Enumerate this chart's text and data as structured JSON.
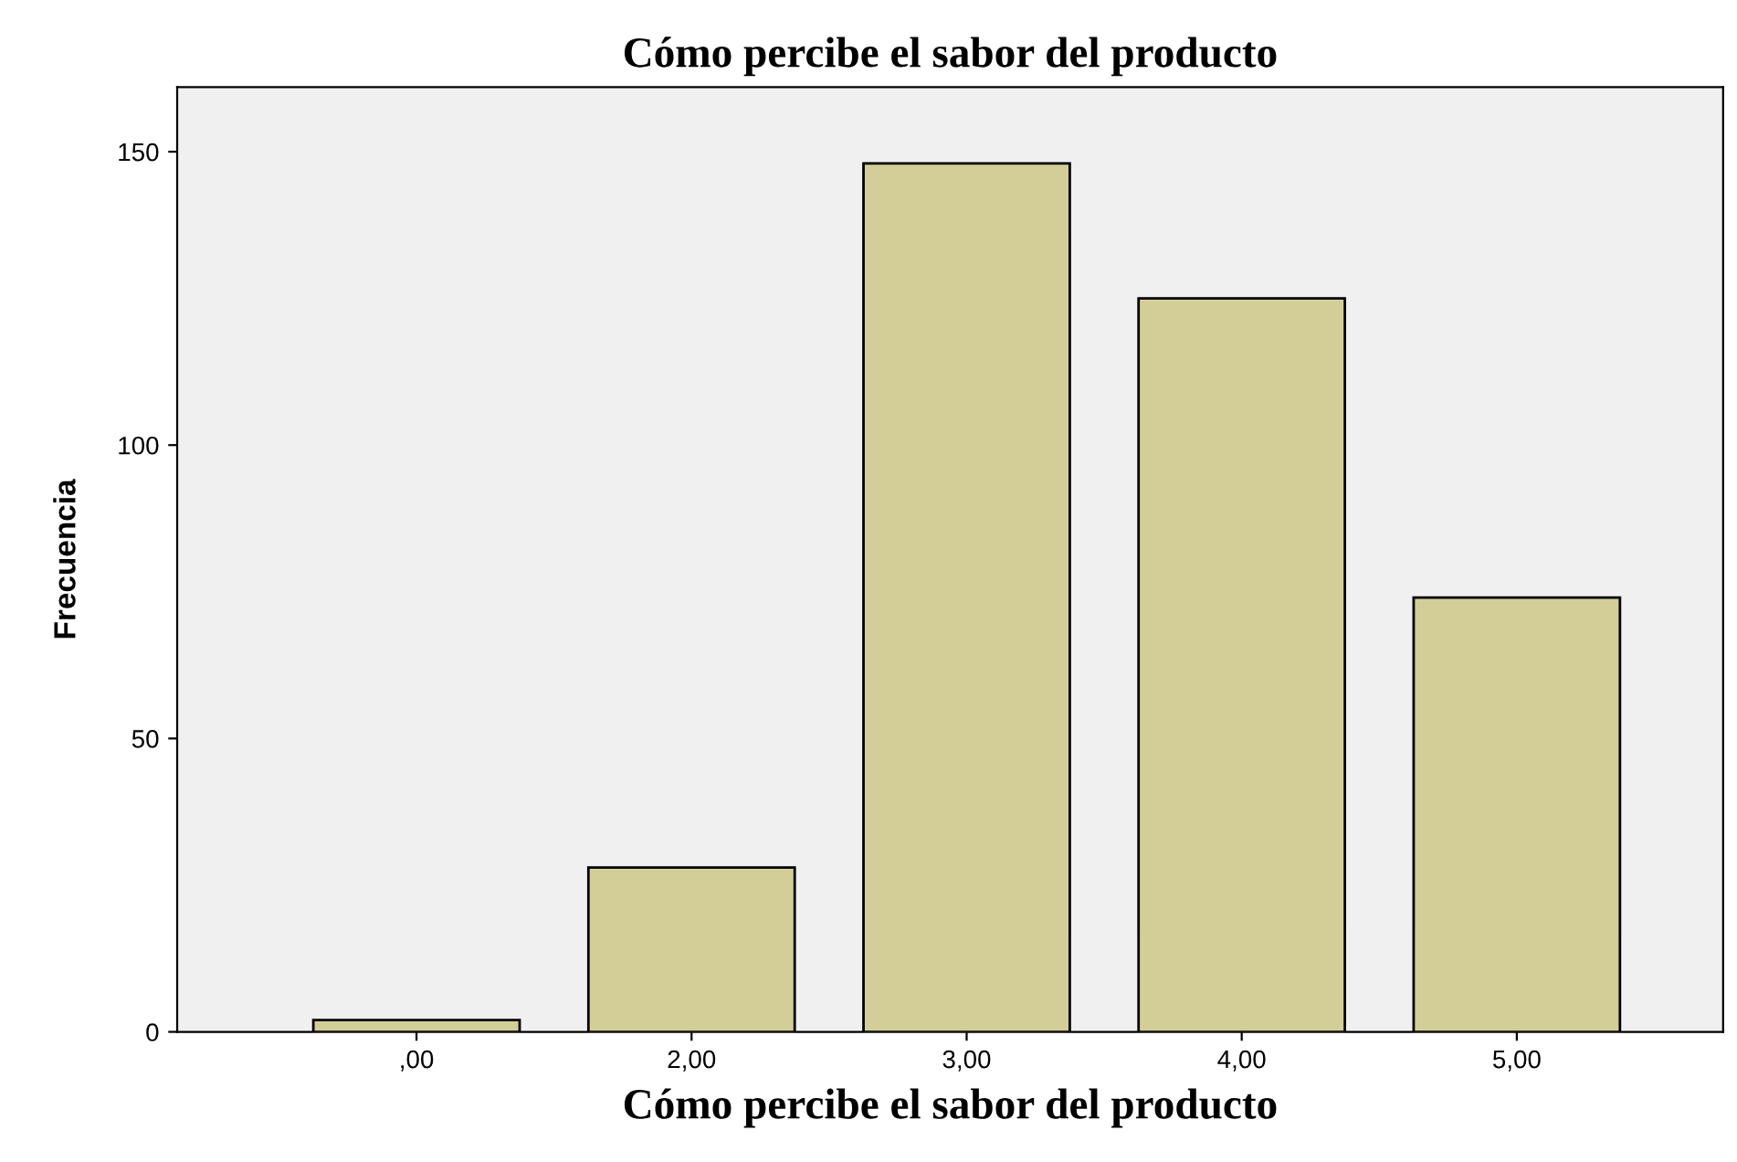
{
  "chart_data": {
    "type": "bar",
    "title": "Cómo percibe el sabor del producto",
    "xlabel": "Cómo percibe el sabor del producto",
    "ylabel": "Frecuencia",
    "categories": [
      ",00",
      "2,00",
      "3,00",
      "4,00",
      "5,00"
    ],
    "values": [
      2,
      28,
      148,
      125,
      74
    ],
    "color": "#d3ce97",
    "ylim": [
      0,
      161
    ],
    "yticks": [
      0,
      50,
      100,
      150
    ],
    "grid": false,
    "legend": false
  }
}
